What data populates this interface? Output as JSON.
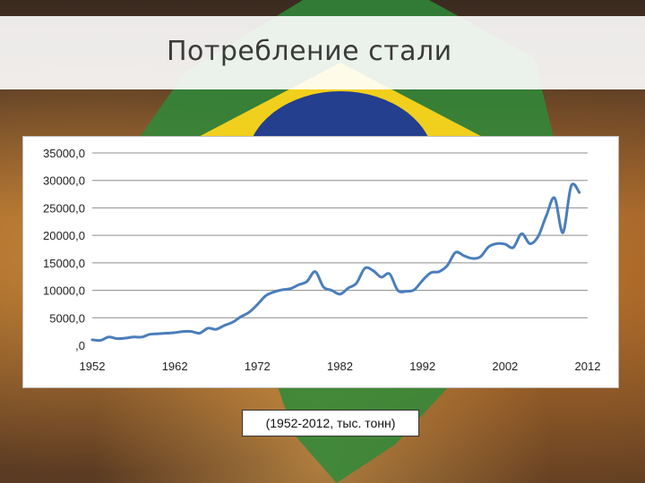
{
  "slide": {
    "title": "Потребление стали",
    "caption": "(1952-2012, тыс. тонн)"
  },
  "colors": {
    "line": "#4a7ebb",
    "grid": "#8c8c8c",
    "title_band": "#ffffff"
  },
  "chart_data": {
    "type": "line",
    "title": "",
    "xlabel": "",
    "ylabel": "",
    "xlim": [
      1952,
      2012
    ],
    "ylim": [
      0,
      35000
    ],
    "x_ticks": [
      "1952",
      "1962",
      "1972",
      "1982",
      "1992",
      "2002",
      "2012"
    ],
    "y_ticks": [
      ",0",
      "5000,0",
      "10000,0",
      "15000,0",
      "20000,0",
      "25000,0",
      "30000,0",
      "35000,0"
    ],
    "grid": true,
    "series": [
      {
        "x": [
          1952,
          1953,
          1954,
          1955,
          1956,
          1957,
          1958,
          1959,
          1960,
          1961,
          1962,
          1963,
          1964,
          1965,
          1966,
          1967,
          1968,
          1969,
          1970,
          1971,
          1972,
          1973,
          1974,
          1975,
          1976,
          1977,
          1978,
          1979,
          1980,
          1981,
          1982,
          1983,
          1984,
          1985,
          1986,
          1987,
          1988,
          1989,
          1990,
          1991,
          1992,
          1993,
          1994,
          1995,
          1996,
          1997,
          1998,
          1999,
          2000,
          2001,
          2002,
          2003,
          2004,
          2005,
          2006,
          2007,
          2008,
          2009,
          2010,
          2011
        ],
        "values": [
          1000,
          900,
          1500,
          1200,
          1300,
          1500,
          1500,
          2000,
          2100,
          2200,
          2300,
          2500,
          2500,
          2200,
          3100,
          2900,
          3600,
          4200,
          5200,
          6000,
          7400,
          9000,
          9700,
          10100,
          10300,
          11000,
          11600,
          13400,
          10600,
          10000,
          9300,
          10400,
          11300,
          14000,
          13600,
          12400,
          13000,
          10000,
          9800,
          10100,
          11800,
          13200,
          13400,
          14500,
          16900,
          16300,
          15800,
          16100,
          17900,
          18500,
          18400,
          17800,
          20300,
          18500,
          19800,
          23600,
          26800,
          20500,
          29000,
          27800
        ]
      }
    ]
  }
}
